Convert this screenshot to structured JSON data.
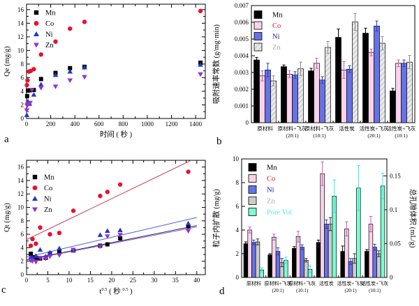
{
  "figure": {
    "background": "#ffffff",
    "panel_labels": [
      "a",
      "b",
      "c",
      "d"
    ]
  },
  "chart_data": [
    {
      "panel_label": "a",
      "type": "scatter",
      "xlabel": "时间 ( 秒 )",
      "ylabel": "Qe (mg/g)",
      "xlim": [
        0,
        1480
      ],
      "ylim": [
        0,
        16.8
      ],
      "xticks": [
        0,
        200,
        400,
        600,
        800,
        1000,
        1200,
        1400
      ],
      "yticks": [
        0,
        2,
        4,
        6,
        8,
        10,
        12,
        14,
        16
      ],
      "grid": false,
      "legend_position": "top-left-inside",
      "series": [
        {
          "name": "Mn",
          "marker": "square",
          "color": "#000000",
          "points": [
            [
              5,
              3.3
            ],
            [
              12,
              4.1
            ],
            [
              30,
              4.15
            ],
            [
              60,
              4.2
            ],
            [
              120,
              5.8
            ],
            [
              240,
              6.7
            ],
            [
              360,
              7.4
            ],
            [
              480,
              7.6
            ],
            [
              1440,
              8.2
            ]
          ]
        },
        {
          "name": "Co",
          "marker": "circle",
          "color": "#e8112d",
          "points": [
            [
              3,
              4.9
            ],
            [
              8,
              5.6
            ],
            [
              20,
              6.9
            ],
            [
              35,
              7.0
            ],
            [
              60,
              7.25
            ],
            [
              120,
              9.4
            ],
            [
              240,
              11.3
            ],
            [
              360,
              13.2
            ],
            [
              480,
              14.2
            ],
            [
              1440,
              15.8
            ]
          ]
        },
        {
          "name": "Ni",
          "marker": "triangle-up",
          "color": "#2038c8",
          "points": [
            [
              2,
              0.5
            ],
            [
              6,
              2.3
            ],
            [
              12,
              2.5
            ],
            [
              25,
              2.15
            ],
            [
              60,
              3.5
            ],
            [
              120,
              5.0
            ],
            [
              240,
              6.4
            ],
            [
              360,
              6.9
            ],
            [
              480,
              7.5
            ],
            [
              1440,
              7.9
            ]
          ]
        },
        {
          "name": "Zn",
          "marker": "triangle-down",
          "color": "#9932cc",
          "points": [
            [
              2,
              1.2
            ],
            [
              6,
              1.9
            ],
            [
              12,
              2.1
            ],
            [
              30,
              2.3
            ],
            [
              45,
              4.2
            ],
            [
              120,
              4.5
            ],
            [
              240,
              4.7
            ],
            [
              360,
              5.6
            ],
            [
              480,
              6.1
            ],
            [
              1440,
              6.5
            ]
          ]
        }
      ]
    },
    {
      "panel_label": "b",
      "type": "bar",
      "ylabel": "吸附速率常数 (g/mg·min)",
      "ylim": [
        0,
        0.007
      ],
      "yticks": [
        0,
        0.001,
        0.002,
        0.003,
        0.004,
        0.005,
        0.006,
        0.007
      ],
      "ytick_labels": [
        "0",
        "0.001",
        "0.002",
        "0.003",
        "0.004",
        "0.005",
        "0.006",
        "0.007"
      ],
      "grid": false,
      "legend_position": "top-left-inside",
      "categories": [
        [
          "原材料",
          ""
        ],
        [
          "原材料+飞灰",
          "(20:1)"
        ],
        [
          "原材料+飞灰",
          "(10:1)"
        ],
        [
          "活性炭",
          ""
        ],
        [
          "活性炭+飞灰",
          "(20:1)"
        ],
        [
          "活性炭+飞灰",
          "(10:1)"
        ]
      ],
      "series": [
        {
          "name": "Mn",
          "fill": "#000000",
          "err_color": "#000000",
          "text_color": "#000000",
          "values": [
            0.00375,
            0.00335,
            0.0031,
            0.0051,
            0.00535,
            0.0019
          ],
          "errors": [
            0.00015,
            0.0001,
            0.00015,
            0.0005,
            0.0003,
            0.00015
          ]
        },
        {
          "name": "Co",
          "fill": "#f9d3e8",
          "err_color": "#c45ac4",
          "text_color": "#e8112d",
          "values": [
            0.0028,
            0.0029,
            0.00355,
            0.00315,
            0.0042,
            0.00355
          ],
          "errors": [
            0.0003,
            0.0002,
            0.0003,
            0.0005,
            0.0002,
            0.0002
          ]
        },
        {
          "name": "Ni",
          "fill": "#6672e8",
          "err_color": "#2a3cd0",
          "text_color": "#1a1aa6",
          "values": [
            0.00315,
            0.00285,
            0.00255,
            0.0032,
            0.00578,
            0.00355
          ],
          "errors": [
            0.0004,
            0.0002,
            0.0002,
            0.0002,
            0.0003,
            0.0002
          ]
        },
        {
          "name": "Zn",
          "fill": "#e6e6e6",
          "hatch": true,
          "err_color": "#8c8c8c",
          "text_color": "#b0b0b0",
          "values": [
            0.0025,
            0.00322,
            0.0045,
            0.00602,
            0.00475,
            0.00362
          ],
          "errors": [
            0.0003,
            0.0004,
            0.00035,
            0.0005,
            0.0004,
            0.0004
          ]
        }
      ]
    },
    {
      "panel_label": "c",
      "type": "scatter",
      "xlabel_parts": [
        [
          "n",
          "t"
        ],
        [
          "s",
          "0.5"
        ],
        [
          "n",
          " ( 秒 "
        ],
        [
          "s",
          "0.5"
        ],
        [
          "n",
          " )"
        ]
      ],
      "ylabel": "Qt (mg/g)",
      "xlim": [
        0,
        42
      ],
      "ylim": [
        0,
        17
      ],
      "xticks": [
        0,
        5,
        10,
        15,
        20,
        25,
        30,
        35,
        40
      ],
      "yticks": [
        0,
        2,
        4,
        6,
        8,
        10,
        12,
        14,
        16
      ],
      "grid": false,
      "legend_position": "top-left-inside",
      "lines": [
        {
          "name": "Co-fit",
          "color": "#c23a50",
          "from": [
            0,
            5.2
          ],
          "to": [
            40,
            17.4
          ]
        },
        {
          "name": "Ni-fit",
          "color": "#4a5ae0",
          "from": [
            0,
            2.6
          ],
          "to": [
            40,
            8.5
          ]
        },
        {
          "name": "Mn-fit",
          "color": "#2b2b4f",
          "from": [
            0,
            2.2
          ],
          "to": [
            40,
            7.3
          ]
        },
        {
          "name": "Zn-fit",
          "color": "#8653d6",
          "from": [
            0,
            2.15
          ],
          "to": [
            40,
            7.1
          ]
        }
      ],
      "series": [
        {
          "name": "Mn",
          "marker": "square",
          "color": "#000000",
          "points": [
            [
              1,
              3.1
            ],
            [
              1.4,
              2.6
            ],
            [
              2.2,
              2.5
            ],
            [
              3.2,
              2.4
            ],
            [
              4.5,
              2.5
            ],
            [
              5.5,
              3.1
            ],
            [
              7.7,
              3.4
            ],
            [
              11,
              3.6
            ],
            [
              17.3,
              4.3
            ],
            [
              19,
              4.5
            ],
            [
              22,
              5.4
            ],
            [
              38,
              7.2
            ]
          ]
        },
        {
          "name": "Co",
          "marker": "circle",
          "color": "#e8112d",
          "points": [
            [
              1,
              4.3
            ],
            [
              1.4,
              5.3
            ],
            [
              2.2,
              4.6
            ],
            [
              3.2,
              7.0
            ],
            [
              5.5,
              6.0
            ],
            [
              7.7,
              6.2
            ],
            [
              11,
              9.5
            ],
            [
              17.3,
              11.7
            ],
            [
              19,
              12.3
            ],
            [
              22,
              13.4
            ],
            [
              38,
              15.3
            ]
          ]
        },
        {
          "name": "Ni",
          "marker": "triangle-up",
          "color": "#2038c8",
          "points": [
            [
              1,
              2.6
            ],
            [
              1.4,
              2.5
            ],
            [
              2.2,
              2.8
            ],
            [
              3.2,
              3.7
            ],
            [
              4.5,
              2.7
            ],
            [
              5.5,
              3.3
            ],
            [
              7.7,
              3.9
            ],
            [
              11,
              3.6
            ],
            [
              17.3,
              5.9
            ],
            [
              19,
              6.5
            ],
            [
              22,
              6.6
            ],
            [
              38,
              7.6
            ]
          ]
        },
        {
          "name": "Zn",
          "marker": "triangle-down",
          "color": "#9932cc",
          "points": [
            [
              1,
              2.1
            ],
            [
              1.4,
              2.0
            ],
            [
              2.2,
              1.9
            ],
            [
              3.2,
              2.5
            ],
            [
              4.5,
              2.4
            ],
            [
              5.5,
              2.7
            ],
            [
              7.7,
              2.9
            ],
            [
              11,
              3.7
            ],
            [
              17.3,
              4.2
            ],
            [
              19,
              5.7
            ],
            [
              22,
              5.9
            ],
            [
              38,
              6.5
            ]
          ]
        }
      ]
    },
    {
      "panel_label": "d",
      "type": "bar",
      "ylabel": "粒子内扩散 (mg/g)",
      "ylabel_right": "总孔隙体积 (mL/g)",
      "ylim": [
        0,
        10
      ],
      "yticks": [
        0,
        2,
        4,
        6,
        8,
        10
      ],
      "ytick_labels": [
        "0",
        "2",
        "4",
        "6",
        "8",
        "10"
      ],
      "ylim_right": [
        0,
        0.175
      ],
      "yticks_right": [
        0,
        0.05,
        0.1,
        0.15
      ],
      "ytick_labels_right": [
        "0",
        "0.05",
        "0.1",
        "0.15"
      ],
      "grid": false,
      "legend_position": "top-left-inside",
      "categories": [
        [
          "原材料",
          ""
        ],
        [
          "原材料+飞灰",
          "(20:1)"
        ],
        [
          "原材料+飞灰",
          "(10:1)"
        ],
        [
          "活性炭",
          ""
        ],
        [
          "活性炭+飞灰",
          "(20:1)"
        ],
        [
          "活性炭+飞灰",
          "(10:1)"
        ]
      ],
      "series": [
        {
          "name": "Mn",
          "fill": "#000000",
          "err_color": "#000000",
          "text_color": "#000000",
          "values": [
            2.85,
            1.9,
            2.45,
            2.95,
            2.2,
            2.2
          ],
          "errors": [
            0.15,
            0.1,
            0.15,
            0.2,
            0.45,
            0.15
          ]
        },
        {
          "name": "Co",
          "fill": "#f9d3e8",
          "err_color": "#c45ac4",
          "text_color": "#e8112d",
          "values": [
            4.0,
            3.4,
            3.45,
            8.75,
            4.1,
            4.5
          ],
          "errors": [
            0.25,
            0.25,
            0.45,
            1.0,
            0.6,
            0.65
          ]
        },
        {
          "name": "Ni",
          "fill": "#6672e8",
          "err_color": "#2a3cd0",
          "text_color": "#1a1aa6",
          "values": [
            2.95,
            2.2,
            2.55,
            4.5,
            1.35,
            2.55
          ],
          "errors": [
            0.2,
            0.3,
            0.2,
            0.35,
            0.25,
            0.25
          ]
        },
        {
          "name": "Zn",
          "fill": "#cccccc",
          "err_color": "#333333",
          "text_color": "#b0b0b0",
          "values": [
            3.0,
            1.25,
            1.45,
            4.5,
            1.6,
            2.0
          ],
          "errors": [
            0.25,
            0.35,
            0.15,
            0.55,
            0.4,
            0.25
          ]
        },
        {
          "name": "Pore Vol",
          "axis": "right",
          "fill": "#7dffd2",
          "err_color": "#2ee8e8",
          "text_color": "#55e8e8",
          "values": [
            0.011,
            0.025,
            0.012,
            0.12,
            0.132,
            0.135
          ],
          "errors": [
            0.003,
            0.005,
            0.005,
            0.024,
            0.033,
            0.019
          ]
        }
      ]
    }
  ]
}
